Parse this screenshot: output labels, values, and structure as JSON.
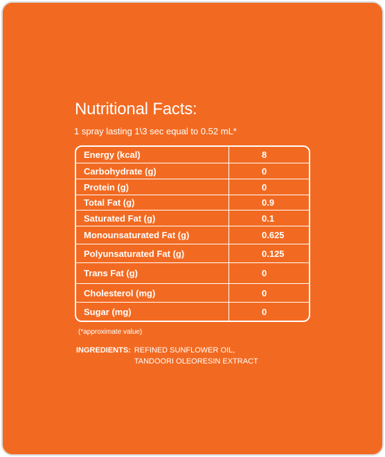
{
  "colors": {
    "background": "#f26a21",
    "text": "#ffffff",
    "frame_border": "#d9d9d9"
  },
  "title": "Nutritional Facts:",
  "serving_text": "1 spray lasting 1\\3 sec equal to 0.52 mL*",
  "nutrition_table": [
    {
      "label": "Energy (kcal)",
      "value": "8"
    },
    {
      "label": "Carbohydrate (g)",
      "value": "0"
    },
    {
      "label": "Protein (g)",
      "value": "0"
    },
    {
      "label": "Total Fat (g)",
      "value": "0.9"
    },
    {
      "label": "Saturated Fat (g)",
      "value": "0.1"
    },
    {
      "label": "Monounsaturated Fat (g)",
      "value": "0.625"
    },
    {
      "label": "Polyunsaturated Fat (g)",
      "value": "0.125"
    },
    {
      "label": "Trans Fat (g)",
      "value": "0"
    },
    {
      "label": "Cholesterol (mg)",
      "value": "0"
    },
    {
      "label": "Sugar (mg)",
      "value": "0"
    }
  ],
  "footnote": "(*approximate value)",
  "ingredients": {
    "label": "INGREDIENTS:",
    "lines": [
      "REFINED SUNFLOWER OIL,",
      "TANDOORI OLEORESIN EXTRACT"
    ]
  }
}
